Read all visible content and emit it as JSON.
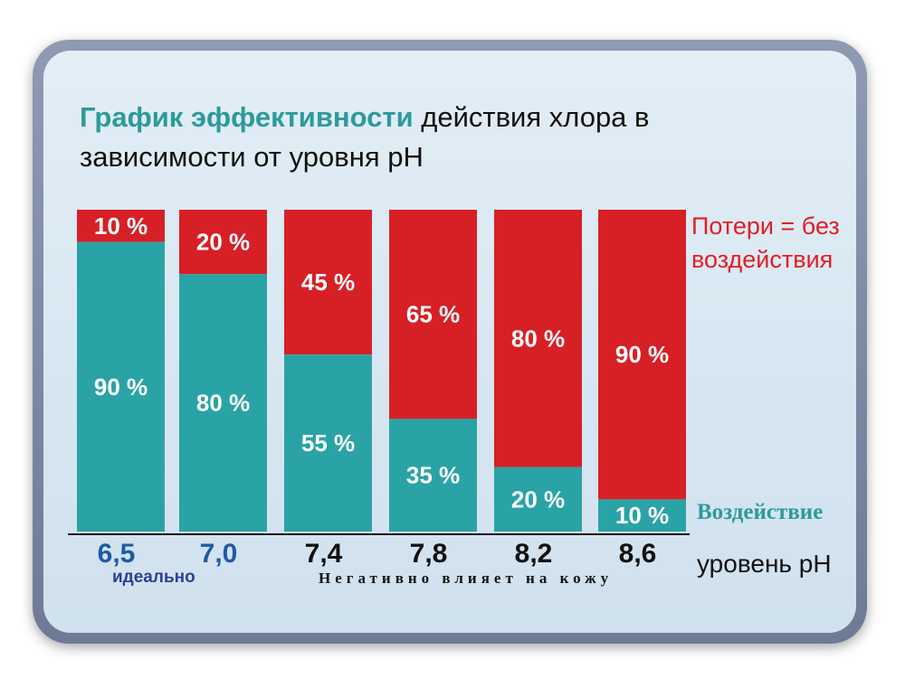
{
  "title_highlight": "График эффективности",
  "title_rest": " действия хлора в зависимости от уровня pH",
  "chart_data": {
    "type": "bar",
    "stacked": true,
    "categories": [
      "6,5",
      "7,0",
      "7,4",
      "7,8",
      "8,2",
      "8,6"
    ],
    "series": [
      {
        "name": "Воздействие",
        "values": [
          90,
          80,
          55,
          35,
          20,
          10
        ],
        "color": "#2aa3a6"
      },
      {
        "name": "Потери = без воздействия",
        "values": [
          10,
          20,
          45,
          65,
          80,
          90
        ],
        "color": "#d71f26"
      }
    ],
    "category_colors": [
      "#1f5aa6",
      "#1f5aa6",
      "#111111",
      "#111111",
      "#111111",
      "#111111"
    ],
    "xlabel": "уровень pH",
    "ylim": [
      0,
      100
    ],
    "unit": "%"
  },
  "legend": {
    "loss_label": "Потери = без воздействия",
    "effect_label": "Воздействие"
  },
  "annotations": {
    "ideal": "идеально",
    "negative": "Негативно влияет на кожу"
  }
}
